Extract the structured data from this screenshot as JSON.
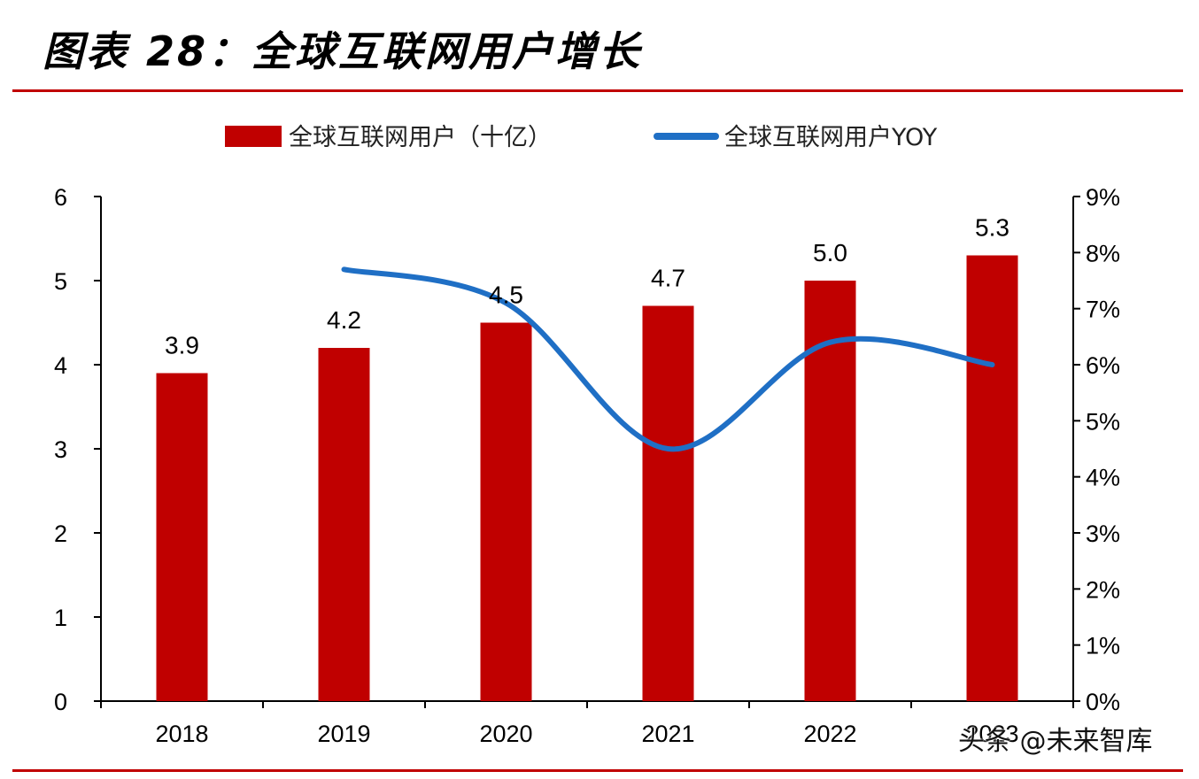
{
  "header": {
    "title": "图表 28：全球互联网用户增长"
  },
  "watermark": "头条 @未来智库",
  "colors": {
    "bar": "#c00000",
    "line": "#1f6fc5",
    "rule": "#c00000",
    "axis": "#000000"
  },
  "chart_data": {
    "type": "bar",
    "categories": [
      "2018",
      "2019",
      "2020",
      "2021",
      "2022",
      "2023"
    ],
    "series": [
      {
        "name": "全球互联网用户（十亿）",
        "type": "bar",
        "axis": "left",
        "values": [
          3.9,
          4.2,
          4.5,
          4.7,
          5.0,
          5.3
        ],
        "labels": [
          "3.9",
          "4.2",
          "4.5",
          "4.7",
          "5.0",
          "5.3"
        ]
      },
      {
        "name": "全球互联网用户YOY",
        "type": "line",
        "axis": "right",
        "values": [
          null,
          7.7,
          7.1,
          4.5,
          6.4,
          6.0
        ]
      }
    ],
    "y_left": {
      "min": 0,
      "max": 6,
      "ticks": [
        "0",
        "1",
        "2",
        "3",
        "4",
        "5",
        "6"
      ]
    },
    "y_right": {
      "min": 0,
      "max": 9,
      "ticks": [
        "0%",
        "1%",
        "2%",
        "3%",
        "4%",
        "5%",
        "6%",
        "7%",
        "8%",
        "9%"
      ]
    },
    "legend": "top",
    "grid": false
  }
}
